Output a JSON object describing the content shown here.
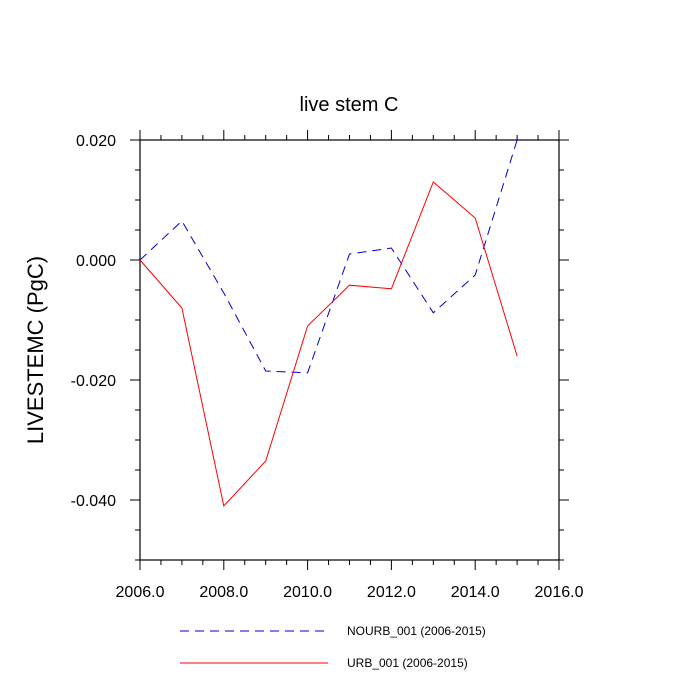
{
  "chart_data": {
    "type": "line",
    "title": "live stem C",
    "xlabel": "",
    "ylabel": "LIVESTEMC  (PgC)",
    "xlim": [
      2006,
      2016
    ],
    "ylim": [
      -0.05,
      0.02
    ],
    "xticks": [
      2006,
      2008,
      2010,
      2012,
      2014,
      2016
    ],
    "xtick_labels": [
      "2006.0",
      "2008.0",
      "2010.0",
      "2012.0",
      "2014.0",
      "2016.0"
    ],
    "yticks": [
      0.02,
      0.0,
      -0.02,
      -0.04
    ],
    "ytick_labels": [
      "0.020",
      "0.000",
      "-0.020",
      "-0.040"
    ],
    "legend_position": "bottom",
    "series": [
      {
        "name": "NOURB_001 (2006-2015)",
        "color": "#0000cc",
        "style": "dashed",
        "x": [
          2006,
          2007,
          2008,
          2009,
          2010,
          2011,
          2012,
          2013,
          2014,
          2015
        ],
        "values": [
          0.0,
          0.0065,
          -0.0055,
          -0.0185,
          -0.0188,
          0.001,
          0.002,
          -0.0088,
          -0.0025,
          0.02
        ]
      },
      {
        "name": "URB_001 (2006-2015)",
        "color": "#ff0000",
        "style": "solid",
        "x": [
          2006,
          2007,
          2008,
          2009,
          2010,
          2011,
          2012,
          2013,
          2014,
          2015
        ],
        "values": [
          0.0,
          -0.008,
          -0.041,
          -0.0335,
          -0.011,
          -0.0042,
          -0.0048,
          0.013,
          0.007,
          -0.016
        ]
      }
    ]
  }
}
